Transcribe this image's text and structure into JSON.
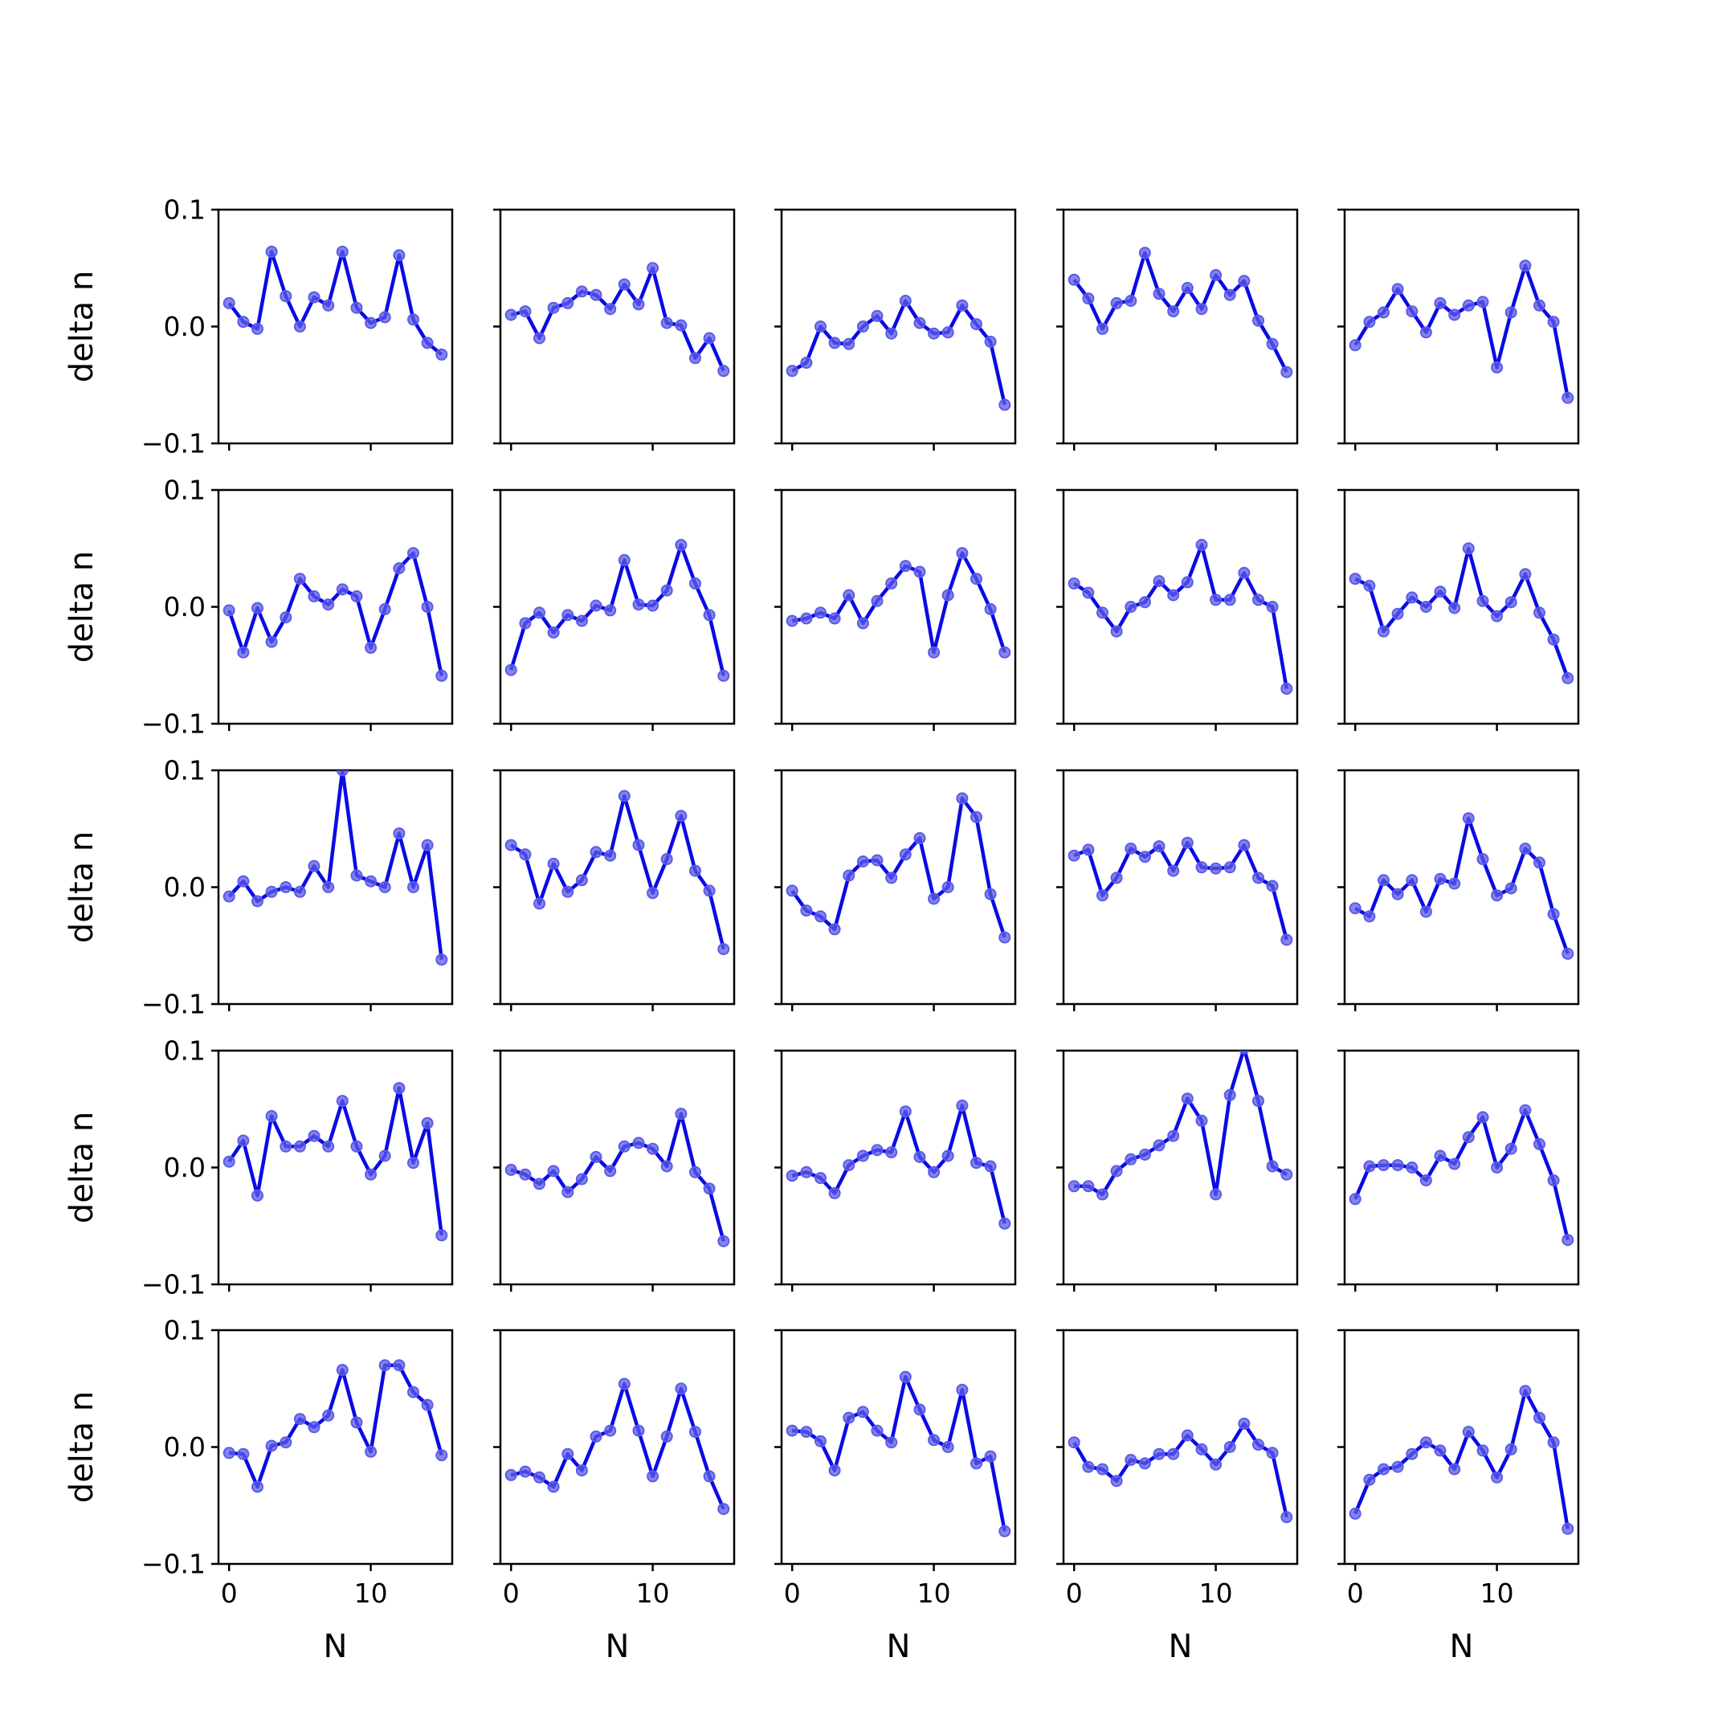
{
  "chart_data": {
    "type": "line",
    "layout": {
      "rows": 5,
      "cols": 5,
      "sharex": true,
      "sharey": true
    },
    "xlabel": "N",
    "ylabel": "delta n",
    "xlim": [
      -0.75,
      15.75
    ],
    "ylim": [
      -0.1,
      0.1
    ],
    "xticks": [
      0,
      10
    ],
    "xtick_labels": [
      "0",
      "10"
    ],
    "yticks": [
      -0.1,
      0.0,
      0.1
    ],
    "ytick_labels": [
      "−0.1",
      "0.0",
      "0.1"
    ],
    "line_color": "#0a0ae6",
    "marker_color": "#5b5be8",
    "x": [
      0,
      1,
      2,
      3,
      4,
      5,
      6,
      7,
      8,
      9,
      10,
      11,
      12,
      13,
      14,
      15
    ],
    "panels": [
      {
        "values": [
          0.02,
          0.004,
          -0.002,
          0.064,
          0.026,
          0.0,
          0.025,
          0.018,
          0.064,
          0.016,
          0.003,
          0.008,
          0.061,
          0.006,
          -0.014,
          -0.024
        ]
      },
      {
        "values": [
          0.01,
          0.013,
          -0.01,
          0.016,
          0.02,
          0.03,
          0.027,
          0.015,
          0.036,
          0.019,
          0.05,
          0.003,
          0.001,
          -0.027,
          -0.01,
          -0.038
        ]
      },
      {
        "values": [
          -0.038,
          -0.031,
          0.0,
          -0.014,
          -0.015,
          0.0,
          0.009,
          -0.006,
          0.022,
          0.003,
          -0.006,
          -0.005,
          0.018,
          0.002,
          -0.013,
          -0.067
        ]
      },
      {
        "values": [
          0.04,
          0.024,
          -0.002,
          0.02,
          0.022,
          0.063,
          0.028,
          0.013,
          0.033,
          0.015,
          0.044,
          0.027,
          0.039,
          0.005,
          -0.015,
          -0.039
        ]
      },
      {
        "values": [
          -0.016,
          0.004,
          0.012,
          0.032,
          0.013,
          -0.005,
          0.02,
          0.01,
          0.018,
          0.021,
          -0.035,
          0.012,
          0.052,
          0.018,
          0.004,
          -0.061
        ]
      },
      {
        "values": [
          -0.003,
          -0.039,
          -0.001,
          -0.03,
          -0.009,
          0.024,
          0.009,
          0.002,
          0.015,
          0.009,
          -0.035,
          -0.002,
          0.033,
          0.046,
          0.0,
          -0.059
        ]
      },
      {
        "values": [
          -0.054,
          -0.014,
          -0.005,
          -0.022,
          -0.007,
          -0.012,
          0.001,
          -0.003,
          0.04,
          0.002,
          0.001,
          0.014,
          0.053,
          0.02,
          -0.007,
          -0.059
        ]
      },
      {
        "values": [
          -0.012,
          -0.01,
          -0.005,
          -0.01,
          0.01,
          -0.014,
          0.005,
          0.02,
          0.035,
          0.03,
          -0.039,
          0.01,
          0.046,
          0.024,
          -0.002,
          -0.039
        ]
      },
      {
        "values": [
          0.02,
          0.012,
          -0.005,
          -0.021,
          0.0,
          0.004,
          0.022,
          0.01,
          0.021,
          0.053,
          0.006,
          0.006,
          0.029,
          0.006,
          0.0,
          -0.07
        ]
      },
      {
        "values": [
          0.024,
          0.018,
          -0.021,
          -0.006,
          0.008,
          0.0,
          0.013,
          -0.001,
          0.05,
          0.005,
          -0.008,
          0.004,
          0.028,
          -0.005,
          -0.028,
          -0.061
        ]
      },
      {
        "values": [
          -0.008,
          0.005,
          -0.012,
          -0.004,
          0.0,
          -0.004,
          0.018,
          0.0,
          0.1,
          0.01,
          0.005,
          0.0,
          0.046,
          0.0,
          0.036,
          -0.062
        ]
      },
      {
        "values": [
          0.036,
          0.028,
          -0.014,
          0.02,
          -0.004,
          0.006,
          0.03,
          0.027,
          0.078,
          0.036,
          -0.005,
          0.024,
          0.061,
          0.014,
          -0.003,
          -0.053
        ]
      },
      {
        "values": [
          -0.003,
          -0.02,
          -0.025,
          -0.036,
          0.01,
          0.022,
          0.023,
          0.008,
          0.028,
          0.042,
          -0.01,
          0.0,
          0.076,
          0.06,
          -0.006,
          -0.043
        ]
      },
      {
        "values": [
          0.027,
          0.032,
          -0.007,
          0.008,
          0.033,
          0.026,
          0.035,
          0.014,
          0.038,
          0.017,
          0.016,
          0.017,
          0.036,
          0.008,
          0.001,
          -0.045
        ]
      },
      {
        "values": [
          -0.018,
          -0.025,
          0.006,
          -0.006,
          0.006,
          -0.021,
          0.007,
          0.003,
          0.059,
          0.024,
          -0.007,
          -0.001,
          0.033,
          0.021,
          -0.023,
          -0.057
        ]
      },
      {
        "values": [
          0.005,
          0.023,
          -0.024,
          0.044,
          0.018,
          0.018,
          0.027,
          0.018,
          0.057,
          0.018,
          -0.006,
          0.01,
          0.068,
          0.004,
          0.038,
          -0.058
        ]
      },
      {
        "values": [
          -0.002,
          -0.006,
          -0.014,
          -0.003,
          -0.021,
          -0.01,
          0.009,
          -0.003,
          0.018,
          0.021,
          0.016,
          0.001,
          0.046,
          -0.004,
          -0.018,
          -0.063
        ]
      },
      {
        "values": [
          -0.007,
          -0.004,
          -0.009,
          -0.022,
          0.002,
          0.01,
          0.015,
          0.013,
          0.048,
          0.009,
          -0.004,
          0.01,
          0.053,
          0.004,
          0.001,
          -0.048
        ]
      },
      {
        "values": [
          -0.016,
          -0.016,
          -0.023,
          -0.003,
          0.007,
          0.011,
          0.019,
          0.027,
          0.059,
          0.04,
          -0.023,
          0.062,
          0.102,
          0.057,
          0.001,
          -0.006
        ]
      },
      {
        "values": [
          -0.027,
          0.001,
          0.002,
          0.002,
          0.0,
          -0.011,
          0.01,
          0.003,
          0.026,
          0.043,
          0.0,
          0.016,
          0.049,
          0.02,
          -0.011,
          -0.062
        ]
      },
      {
        "values": [
          -0.005,
          -0.006,
          -0.034,
          0.001,
          0.004,
          0.024,
          0.017,
          0.027,
          0.066,
          0.021,
          -0.004,
          0.07,
          0.07,
          0.047,
          0.036,
          -0.007
        ]
      },
      {
        "values": [
          -0.024,
          -0.021,
          -0.026,
          -0.034,
          -0.006,
          -0.02,
          0.009,
          0.014,
          0.054,
          0.014,
          -0.025,
          0.009,
          0.05,
          0.013,
          -0.025,
          -0.053
        ]
      },
      {
        "values": [
          0.014,
          0.013,
          0.005,
          -0.02,
          0.025,
          0.03,
          0.014,
          0.004,
          0.06,
          0.032,
          0.006,
          0.0,
          0.049,
          -0.014,
          -0.008,
          -0.072
        ]
      },
      {
        "values": [
          0.004,
          -0.017,
          -0.019,
          -0.029,
          -0.011,
          -0.014,
          -0.006,
          -0.006,
          0.01,
          -0.002,
          -0.015,
          0.0,
          0.02,
          0.002,
          -0.005,
          -0.06
        ]
      },
      {
        "values": [
          -0.057,
          -0.028,
          -0.019,
          -0.017,
          -0.006,
          0.004,
          -0.003,
          -0.019,
          0.013,
          -0.003,
          -0.026,
          -0.002,
          0.048,
          0.025,
          0.004,
          -0.07
        ]
      }
    ]
  }
}
